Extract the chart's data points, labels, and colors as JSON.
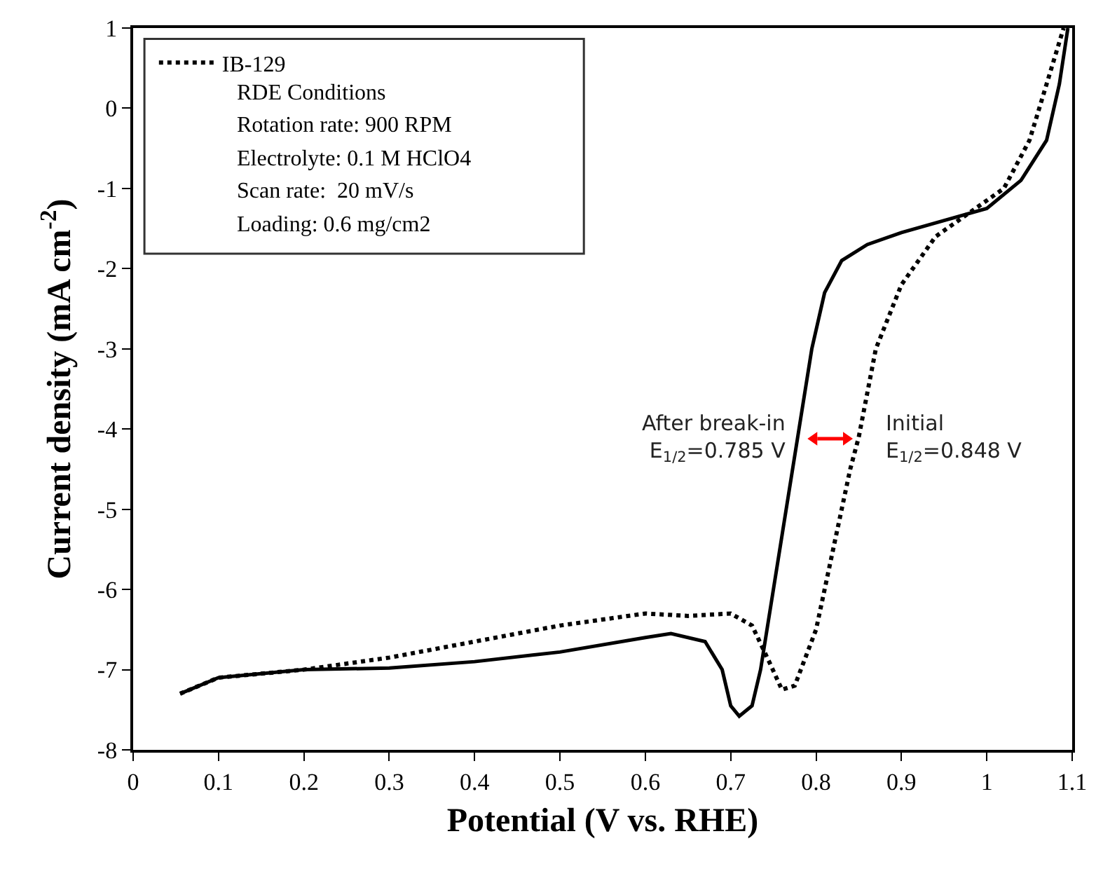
{
  "chart_data": {
    "type": "line",
    "xlabel": "Potential (V vs. RHE)",
    "ylabel": "Current density (mA cm$^{-2}$)",
    "xlim": [
      0,
      1.1
    ],
    "xticks": [
      0,
      0.1,
      0.2,
      0.3,
      0.4,
      0.5,
      0.6,
      0.7,
      0.8,
      0.9,
      1,
      1.1
    ],
    "ylim": [
      -8,
      1
    ],
    "yticks": [
      -8,
      -7,
      -6,
      -5,
      -4,
      -3,
      -2,
      -1,
      0,
      1
    ],
    "grid": false,
    "legend": "top left",
    "marker": "none",
    "series": [
      {
        "name": "IB-129",
        "color": "#000000",
        "line_style": "dotted",
        "x": [
          0.055,
          0.1,
          0.2,
          0.3,
          0.4,
          0.5,
          0.6,
          0.65,
          0.7,
          0.725,
          0.745,
          0.76,
          0.775,
          0.8,
          0.82,
          0.84,
          0.85,
          0.87,
          0.9,
          0.94,
          0.98,
          1.02,
          1.05,
          1.07,
          1.09
        ],
        "values": [
          -7.3,
          -7.1,
          -7.0,
          -6.85,
          -6.65,
          -6.45,
          -6.3,
          -6.33,
          -6.3,
          -6.45,
          -6.9,
          -7.25,
          -7.2,
          -6.5,
          -5.5,
          -4.5,
          -4.1,
          -3.0,
          -2.2,
          -1.6,
          -1.3,
          -1.0,
          -0.4,
          0.3,
          1.0
        ]
      },
      {
        "color": "#000000",
        "line_style": "solid",
        "x": [
          0.055,
          0.1,
          0.2,
          0.3,
          0.4,
          0.5,
          0.6,
          0.63,
          0.67,
          0.69,
          0.7,
          0.71,
          0.725,
          0.735,
          0.75,
          0.765,
          0.78,
          0.795,
          0.81,
          0.83,
          0.86,
          0.9,
          0.95,
          1.0,
          1.04,
          1.07,
          1.085,
          1.095
        ],
        "values": [
          -7.3,
          -7.1,
          -7.0,
          -6.98,
          -6.9,
          -6.78,
          -6.6,
          -6.55,
          -6.65,
          -7.0,
          -7.45,
          -7.58,
          -7.45,
          -7.0,
          -6.0,
          -5.0,
          -4.0,
          -3.0,
          -2.3,
          -1.9,
          -1.7,
          -1.55,
          -1.4,
          -1.25,
          -0.9,
          -0.4,
          0.3,
          1.0
        ]
      }
    ],
    "annotations": [
      "RDE Conditions",
      "Rotation rate: 900 RPM",
      "Electrolyte: 0.1 M HClO4",
      "Scan rate:  20 mV/s",
      "Loading: 0.6 mg/cm2",
      {
        "text": "After break-in\nE$_{1/2}$=0.785 V",
        "x": 0.785,
        "y": -4.12
      },
      {
        "text": "Initial\nE$_{1/2}$=0.848 V",
        "x": 0.848,
        "y": -4.12
      }
    ]
  }
}
